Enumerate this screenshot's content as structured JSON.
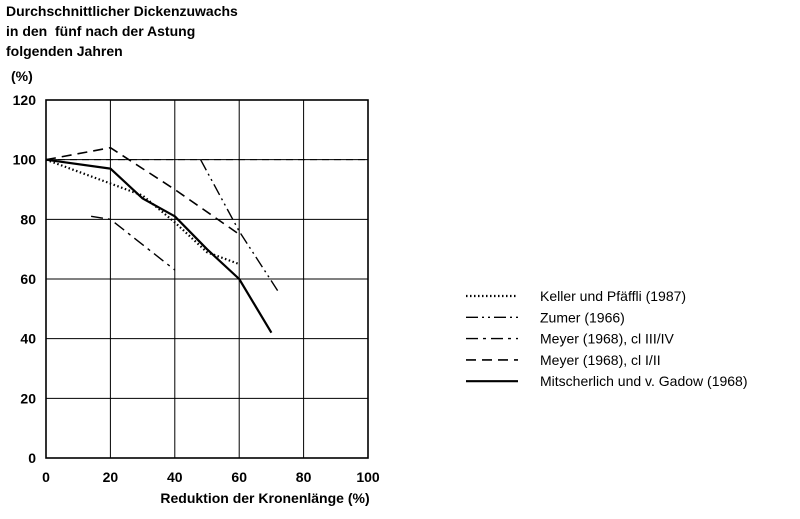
{
  "chart_data": {
    "type": "line",
    "ylabel_lines": [
      "Durchschnittlicher Dickenzuwachs",
      "in den  fünf nach der Astung",
      "folgenden Jahren",
      "(%)"
    ],
    "xlabel": "Reduktion der Kronenlänge (%)",
    "xlim": [
      0,
      100
    ],
    "ylim": [
      0,
      120
    ],
    "xticks": [
      "0",
      "20",
      "40",
      "60",
      "80",
      "100"
    ],
    "yticks": [
      "0",
      "20",
      "40",
      "60",
      "80",
      "100",
      "120"
    ],
    "grid": true,
    "legend_position": "right",
    "reference_line": {
      "y": 100,
      "style": "dash"
    },
    "series": [
      {
        "name": "Keller und Pfäffli (1987)",
        "style": "dotted",
        "points": [
          [
            0,
            100
          ],
          [
            20,
            92
          ],
          [
            30,
            88
          ],
          [
            40,
            79
          ],
          [
            50,
            69
          ],
          [
            60,
            65
          ]
        ]
      },
      {
        "name": "Zumer (1966)",
        "style": "dash-dot-dot",
        "points": [
          [
            48,
            100
          ],
          [
            60,
            76
          ],
          [
            72,
            56
          ]
        ]
      },
      {
        "name": "Meyer (1968), cl III/IV",
        "style": "dash-dot",
        "points": [
          [
            14,
            81
          ],
          [
            20,
            80
          ],
          [
            40,
            63
          ]
        ]
      },
      {
        "name": "Meyer (1968), cl I/II",
        "style": "dash",
        "points": [
          [
            0,
            100
          ],
          [
            20,
            104
          ],
          [
            40,
            90
          ],
          [
            60,
            75
          ]
        ]
      },
      {
        "name": "Mitscherlich und v. Gadow (1968)",
        "style": "solid",
        "points": [
          [
            0,
            100
          ],
          [
            20,
            97
          ],
          [
            30,
            87
          ],
          [
            40,
            81
          ],
          [
            50,
            70
          ],
          [
            60,
            60
          ],
          [
            70,
            42
          ]
        ]
      }
    ]
  }
}
